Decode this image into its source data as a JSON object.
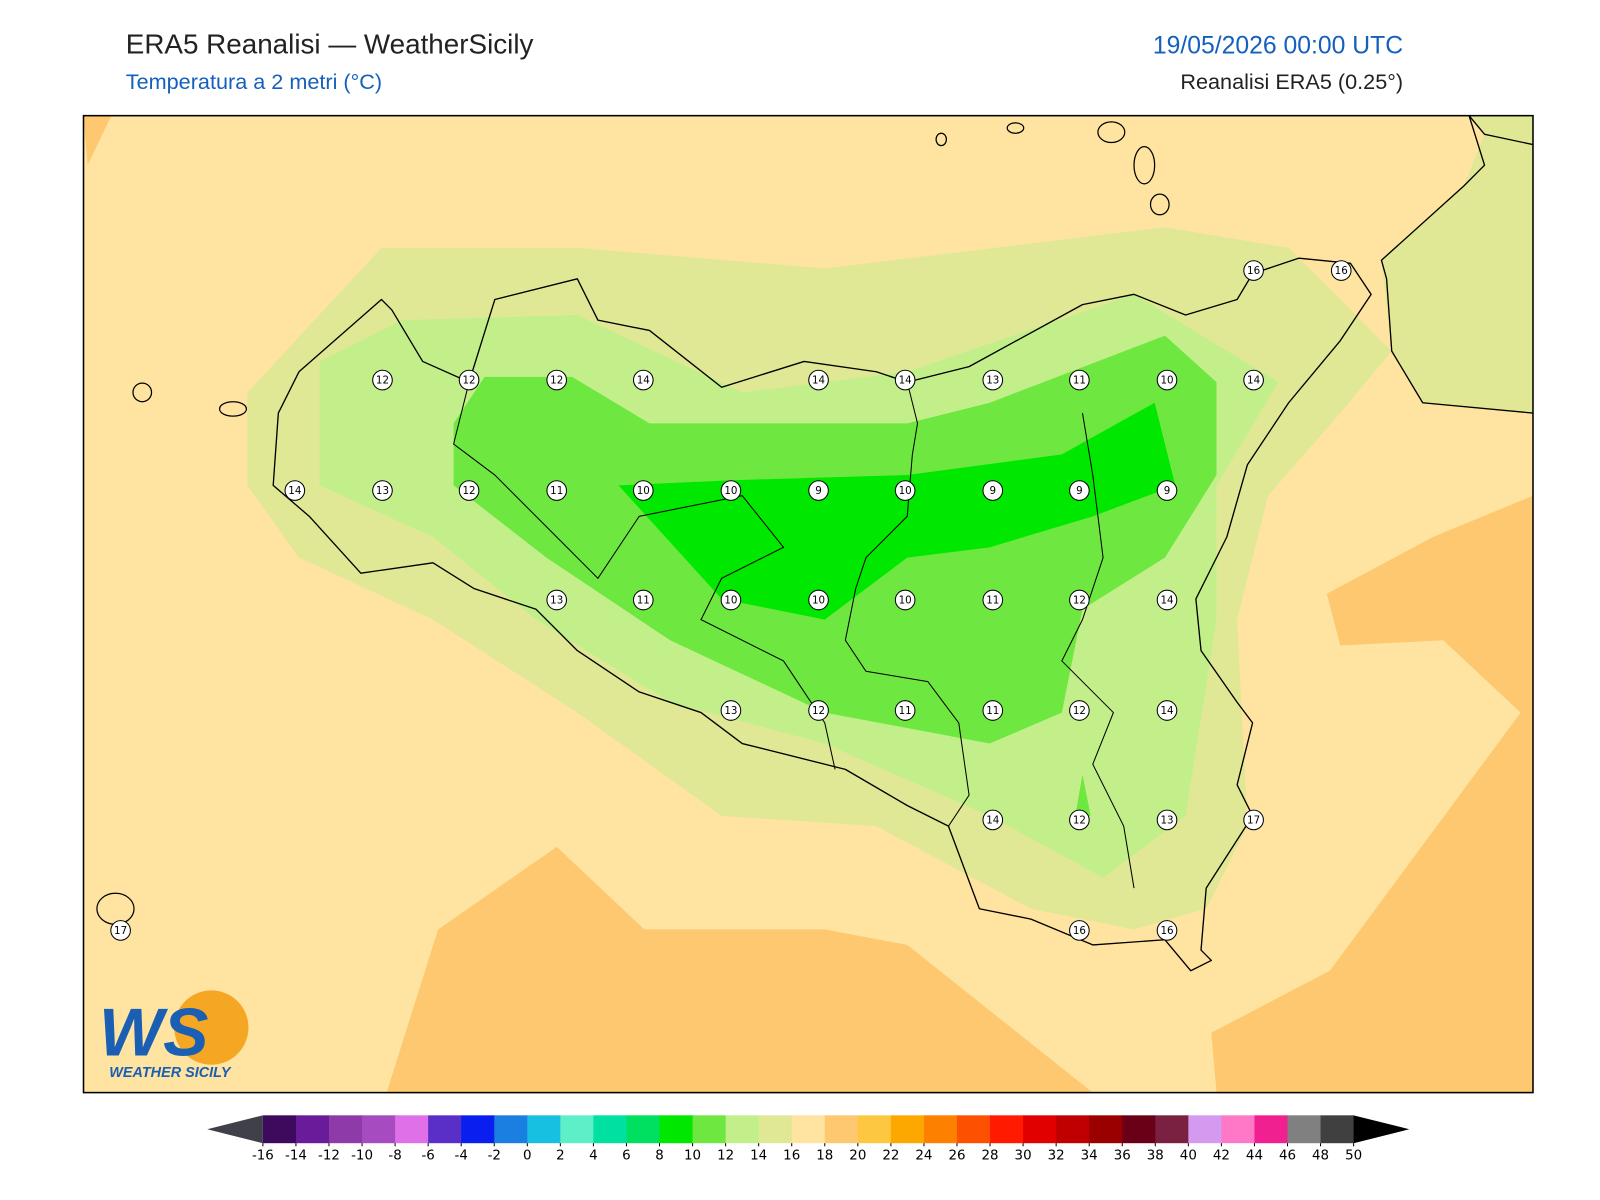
{
  "header": {
    "title": "ERA5 Reanalisi — WeatherSicily",
    "subtitle": "Temperatura a 2 metri (°C)",
    "datetime": "19/05/2026 00:00 UTC",
    "source": "Reanalisi ERA5 (0.25°)"
  },
  "stations": [
    16,
    16,
    12,
    12,
    12,
    14,
    14,
    14,
    13,
    11,
    10,
    14,
    14,
    13,
    12,
    11,
    10,
    10,
    9,
    10,
    9,
    9,
    9,
    13,
    11,
    10,
    10,
    10,
    11,
    12,
    14,
    13,
    12,
    11,
    11,
    12,
    14,
    14,
    12,
    13,
    17,
    17,
    16,
    16
  ],
  "colorbar": {
    "ticks": [
      -16,
      -14,
      -12,
      -10,
      -8,
      -6,
      -4,
      -2,
      0,
      2,
      4,
      6,
      8,
      10,
      12,
      14,
      16,
      18,
      20,
      22,
      24,
      26,
      28,
      30,
      32,
      34,
      36,
      38,
      40,
      42,
      44,
      46,
      48,
      50
    ],
    "colors": [
      "#3d0a5e",
      "#6a1b9a",
      "#8e3aa8",
      "#a64cc0",
      "#e070e8",
      "#5a2fc8",
      "#0a1ef0",
      "#1a7fe0",
      "#17c0e0",
      "#5fefc8",
      "#00e0a0",
      "#00e060",
      "#00e800",
      "#6ee840",
      "#c3ef8a",
      "#e0e896",
      "#fee4a0",
      "#fdc870",
      "#fdc840",
      "#fda800",
      "#fd8000",
      "#fd5000",
      "#ff1a00",
      "#e00000",
      "#c00000",
      "#9a0000",
      "#6a0018",
      "#7a2040",
      "#d49af0",
      "#ff78c8",
      "#f02090",
      "#808080",
      "#404040"
    ],
    "under_color": "#404048",
    "over_color": "#000000"
  },
  "logo": {
    "mark": "WS",
    "text": "WEATHER SICILY"
  }
}
